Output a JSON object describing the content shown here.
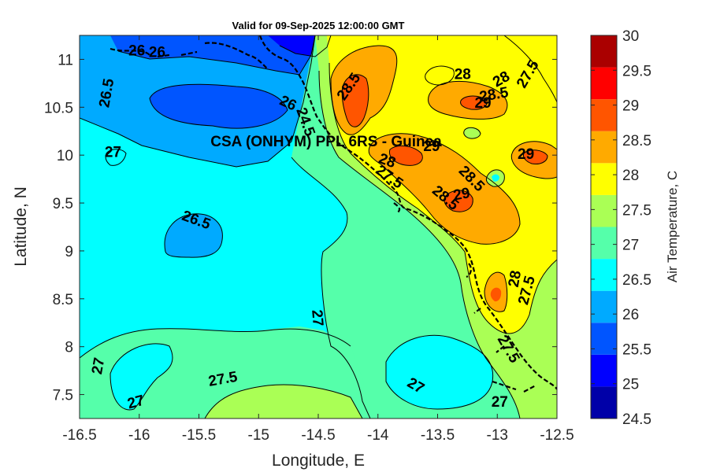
{
  "title": "Valid for 09-Sep-2025 12:00:00 GMT",
  "annotation": "CSA (ONHYM) PPL 6RS - Guinea",
  "chart_data": {
    "type": "contourf",
    "xlabel": "Longitude, E",
    "ylabel": "Latitude, N",
    "xlim": [
      -16.5,
      -12.5
    ],
    "ylim": [
      7.25,
      11.25
    ],
    "xticks": [
      "-16.5",
      "-16",
      "-15.5",
      "-15",
      "-14.5",
      "-14",
      "-13.5",
      "-13",
      "-12.5"
    ],
    "yticks": [
      "7.5",
      "8",
      "8.5",
      "9",
      "9.5",
      "10",
      "10.5",
      "11"
    ],
    "colorbar": {
      "label": "Air Temperature, C",
      "ticks": [
        "24.5",
        "25",
        "25.5",
        "26",
        "26.5",
        "27",
        "27.5",
        "28",
        "28.5",
        "29",
        "29.5",
        "30"
      ],
      "colors": [
        "#0000a8",
        "#0000ff",
        "#0055ff",
        "#00aaff",
        "#00ffff",
        "#55ffaa",
        "#aaff55",
        "#ffff00",
        "#ffaa00",
        "#ff5500",
        "#ff0000",
        "#aa0000"
      ]
    },
    "contour_labels": [
      {
        "text": "26",
        "lon": -15.85,
        "lat": 11.08,
        "rot": 0
      },
      {
        "text": "26",
        "lon": -16.02,
        "lat": 11.1,
        "rot": 0
      },
      {
        "text": "26",
        "lon": -14.75,
        "lat": 10.55,
        "rot": 25
      },
      {
        "text": "26.5",
        "lon": -16.28,
        "lat": 10.65,
        "rot": -80
      },
      {
        "text": "27",
        "lon": -16.22,
        "lat": 10.04,
        "rot": 0
      },
      {
        "text": "26.5",
        "lon": -15.52,
        "lat": 9.33,
        "rot": 20
      },
      {
        "text": "27",
        "lon": -14.5,
        "lat": 8.3,
        "rot": 85
      },
      {
        "text": "27",
        "lon": -16.35,
        "lat": 7.8,
        "rot": -80
      },
      {
        "text": "27",
        "lon": -16.03,
        "lat": 7.43,
        "rot": -15
      },
      {
        "text": "27.5",
        "lon": -15.3,
        "lat": 7.67,
        "rot": -10
      },
      {
        "text": "27",
        "lon": -13.68,
        "lat": 7.6,
        "rot": 30
      },
      {
        "text": "27",
        "lon": -12.98,
        "lat": 7.43,
        "rot": 0
      },
      {
        "text": "28.5",
        "lon": -14.25,
        "lat": 10.72,
        "rot": -55
      },
      {
        "text": "28",
        "lon": -13.29,
        "lat": 10.85,
        "rot": 0
      },
      {
        "text": "28.5",
        "lon": -13.03,
        "lat": 10.64,
        "rot": -10
      },
      {
        "text": "29",
        "lon": -13.12,
        "lat": 10.55,
        "rot": 0
      },
      {
        "text": "28",
        "lon": -12.97,
        "lat": 10.8,
        "rot": -30
      },
      {
        "text": "27.5",
        "lon": -12.75,
        "lat": 10.85,
        "rot": -60
      },
      {
        "text": "29",
        "lon": -13.55,
        "lat": 10.1,
        "rot": 0
      },
      {
        "text": "29",
        "lon": -12.76,
        "lat": 10.02,
        "rot": 0
      },
      {
        "text": "27.5",
        "lon": -13.9,
        "lat": 9.78,
        "rot": 35
      },
      {
        "text": "28",
        "lon": -13.92,
        "lat": 9.95,
        "rot": 20
      },
      {
        "text": "28.5",
        "lon": -13.43,
        "lat": 9.56,
        "rot": 40
      },
      {
        "text": "29",
        "lon": -13.3,
        "lat": 9.6,
        "rot": -10
      },
      {
        "text": "28.5",
        "lon": -13.21,
        "lat": 9.76,
        "rot": 45
      },
      {
        "text": "28",
        "lon": -12.86,
        "lat": 8.71,
        "rot": -80
      },
      {
        "text": "27.5",
        "lon": -12.76,
        "lat": 8.59,
        "rot": -75
      },
      {
        "text": "27.5",
        "lon": -12.9,
        "lat": 7.98,
        "rot": 60
      },
      {
        "text": "24.5",
        "lon": -14.6,
        "lat": 10.35,
        "rot": 70
      }
    ]
  }
}
